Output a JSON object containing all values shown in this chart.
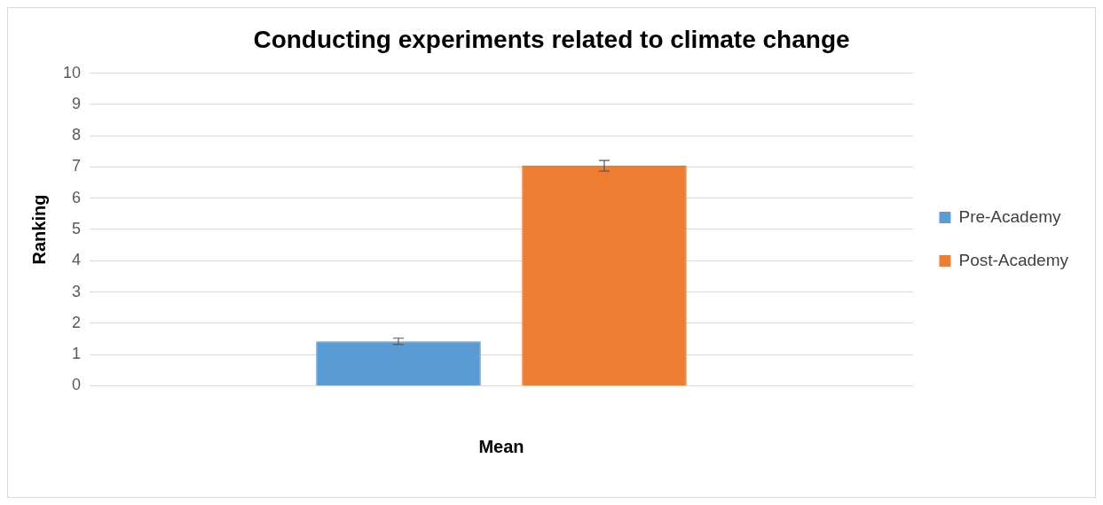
{
  "chart_data": {
    "type": "bar",
    "title": "Conducting experiments related to climate change",
    "xlabel": "Mean",
    "ylabel": "Ranking",
    "categories": [
      null
    ],
    "series": [
      {
        "name": "Pre-Academy",
        "color": "#5b9bd5",
        "values": [
          1.42
        ],
        "errors": [
          0.1
        ]
      },
      {
        "name": "Post-Academy",
        "color": "#ed7d31",
        "values": [
          7.04
        ],
        "errors": [
          0.17
        ]
      }
    ],
    "ylim": [
      0,
      10
    ],
    "yticks": [
      0,
      1,
      2,
      3,
      4,
      5,
      6,
      7,
      8,
      9,
      10
    ],
    "grid": "y",
    "legend": "right"
  }
}
